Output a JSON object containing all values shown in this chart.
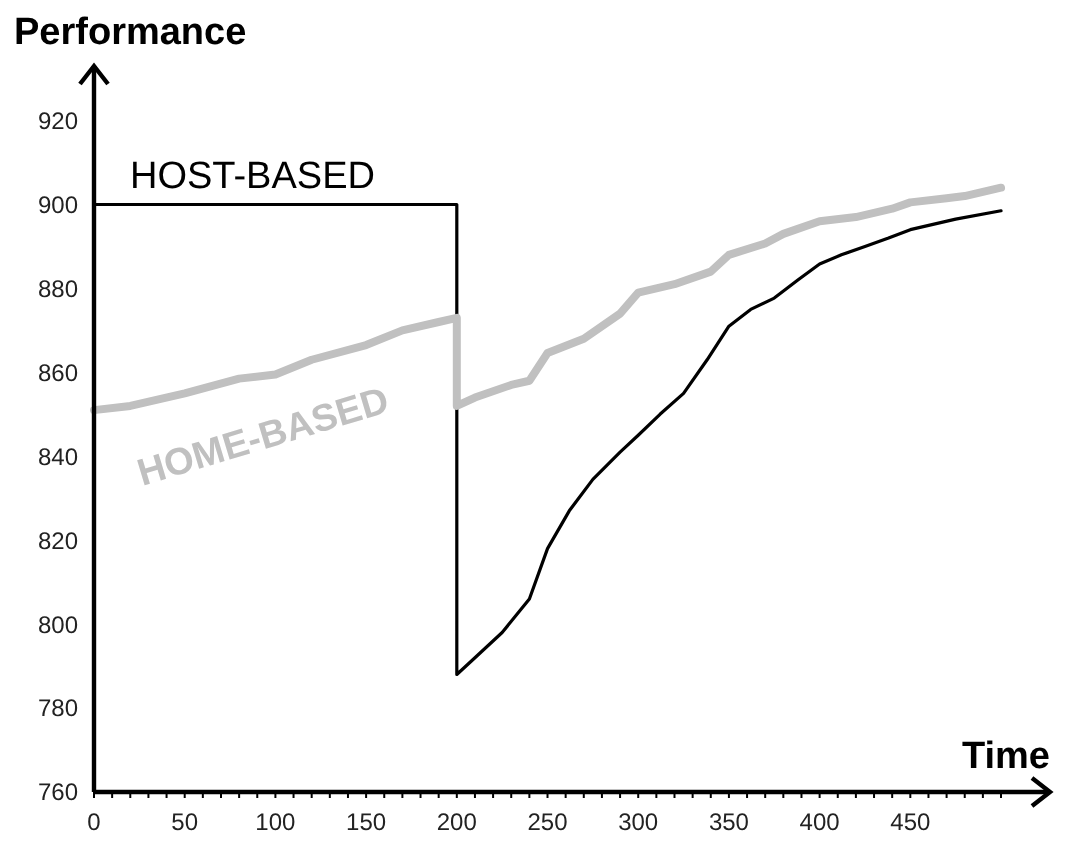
{
  "chart_data": {
    "type": "line",
    "xlabel": "Time",
    "ylabel": "Performance",
    "xlim": [
      0,
      527
    ],
    "ylim": [
      760,
      933
    ],
    "xticks": [
      0,
      {
        "value": 10,
        "label": null
      },
      {
        "value": 20,
        "label": null
      },
      {
        "value": 30,
        "label": null
      },
      {
        "value": 40,
        "label": null
      },
      50,
      {
        "value": 60,
        "label": null
      },
      {
        "value": 70,
        "label": null
      },
      {
        "value": 80,
        "label": null
      },
      {
        "value": 90,
        "label": null
      },
      100,
      {
        "value": 110,
        "label": null
      },
      {
        "value": 120,
        "label": null
      },
      {
        "value": 130,
        "label": null
      },
      {
        "value": 140,
        "label": null
      },
      150,
      {
        "value": 160,
        "label": null
      },
      {
        "value": 170,
        "label": null
      },
      {
        "value": 180,
        "label": null
      },
      {
        "value": 190,
        "label": null
      },
      200,
      {
        "value": 210,
        "label": null
      },
      {
        "value": 220,
        "label": null
      },
      {
        "value": 230,
        "label": null
      },
      {
        "value": 240,
        "label": null
      },
      250,
      {
        "value": 260,
        "label": null
      },
      {
        "value": 270,
        "label": null
      },
      {
        "value": 280,
        "label": null
      },
      {
        "value": 290,
        "label": null
      },
      300,
      {
        "value": 310,
        "label": null
      },
      {
        "value": 320,
        "label": null
      },
      {
        "value": 330,
        "label": null
      },
      {
        "value": 340,
        "label": null
      },
      350,
      {
        "value": 360,
        "label": null
      },
      {
        "value": 370,
        "label": null
      },
      {
        "value": 380,
        "label": null
      },
      {
        "value": 390,
        "label": null
      },
      400,
      {
        "value": 410,
        "label": null
      },
      {
        "value": 420,
        "label": null
      },
      {
        "value": 430,
        "label": null
      },
      {
        "value": 440,
        "label": null
      },
      450,
      {
        "value": 460,
        "label": null
      },
      {
        "value": 470,
        "label": null
      },
      {
        "value": 480,
        "label": null
      },
      {
        "value": 490,
        "label": null
      },
      {
        "value": 500,
        "label": null
      }
    ],
    "yticks": [
      760,
      780,
      800,
      820,
      840,
      860,
      880,
      900,
      920
    ],
    "grid": false,
    "marker": "none",
    "line_style": "solid",
    "series": [
      {
        "name": "HOST-BASED",
        "color": "#000000",
        "x": [
          0,
          50,
          100,
          150,
          200,
          200,
          210,
          225,
          240,
          250,
          262,
          275,
          290,
          300,
          312,
          325,
          338,
          350,
          362,
          375,
          388,
          400,
          412,
          425,
          438,
          450,
          475,
          500
        ],
        "values": [
          900,
          900,
          900,
          900,
          900,
          788,
          792,
          798,
          806,
          818,
          827,
          834.5,
          841,
          845,
          850,
          855,
          863,
          871,
          875,
          877.7,
          882,
          885.8,
          888,
          890,
          892,
          894,
          896.5,
          898.5
        ]
      },
      {
        "name": "HOME-BASED",
        "color": "#c0c0c0",
        "x": [
          0,
          20,
          50,
          80,
          100,
          120,
          150,
          170,
          190,
          200,
          200,
          210,
          230,
          240,
          250,
          270,
          290,
          300,
          320,
          340,
          350,
          370,
          380,
          400,
          420,
          440,
          450,
          470,
          480,
          500
        ],
        "values": [
          851,
          852,
          855,
          858.5,
          859.5,
          863,
          866.5,
          870,
          872,
          873,
          852,
          854,
          857,
          858,
          864.6,
          868,
          874,
          879,
          881,
          884,
          888,
          890.7,
          893,
          896,
          897,
          899,
          900.5,
          901.5,
          902,
          904
        ]
      }
    ]
  }
}
